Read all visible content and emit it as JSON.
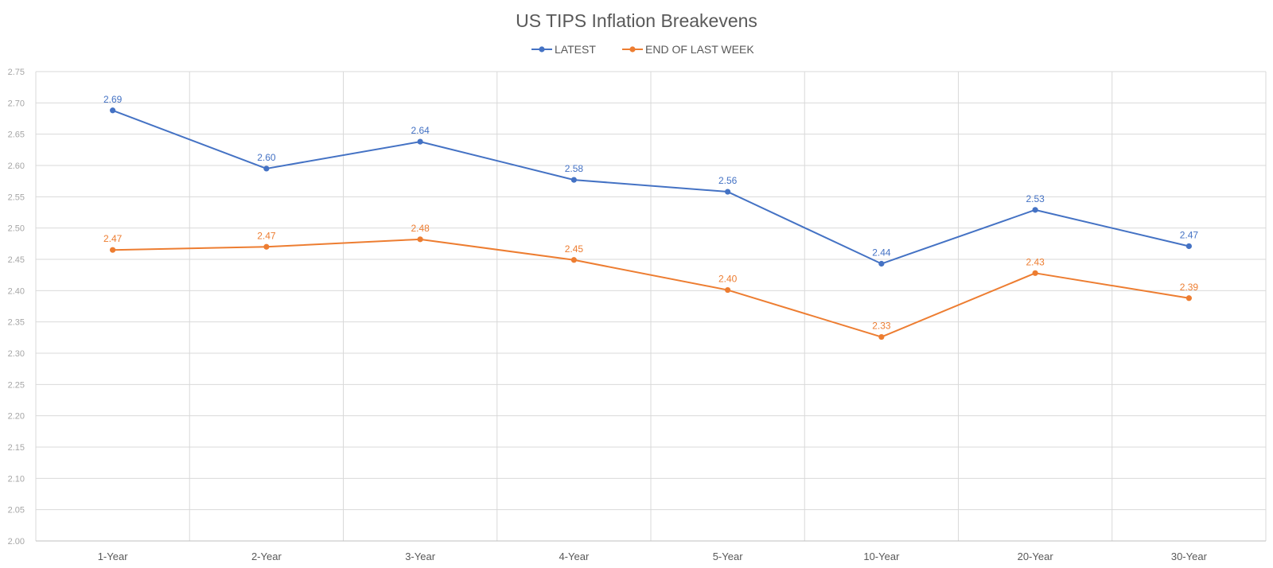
{
  "chart_data": {
    "type": "line",
    "title": "US TIPS Inflation Breakevens",
    "xlabel": "",
    "ylabel": "",
    "categories": [
      "1-Year",
      "2-Year",
      "3-Year",
      "4-Year",
      "5-Year",
      "10-Year",
      "20-Year",
      "30-Year"
    ],
    "ylim": [
      2.0,
      2.75
    ],
    "ytick_step": 0.05,
    "yticks": [
      "2.00",
      "2.05",
      "2.10",
      "2.15",
      "2.20",
      "2.25",
      "2.30",
      "2.35",
      "2.40",
      "2.45",
      "2.50",
      "2.55",
      "2.60",
      "2.65",
      "2.70",
      "2.75"
    ],
    "grid": "on",
    "legend_position": "top-center",
    "series": [
      {
        "name": "LATEST",
        "color": "#4472c4",
        "values": [
          2.688,
          2.595,
          2.638,
          2.577,
          2.558,
          2.443,
          2.529,
          2.471
        ],
        "labels": [
          "2.69",
          "2.60",
          "2.64",
          "2.58",
          "2.56",
          "2.44",
          "2.53",
          "2.47"
        ]
      },
      {
        "name": "END OF LAST WEEK",
        "color": "#ed7d31",
        "values": [
          2.465,
          2.47,
          2.482,
          2.449,
          2.401,
          2.326,
          2.428,
          2.388
        ],
        "labels": [
          "2.47",
          "2.47",
          "2.48",
          "2.45",
          "2.40",
          "2.33",
          "2.43",
          "2.39"
        ]
      }
    ]
  }
}
